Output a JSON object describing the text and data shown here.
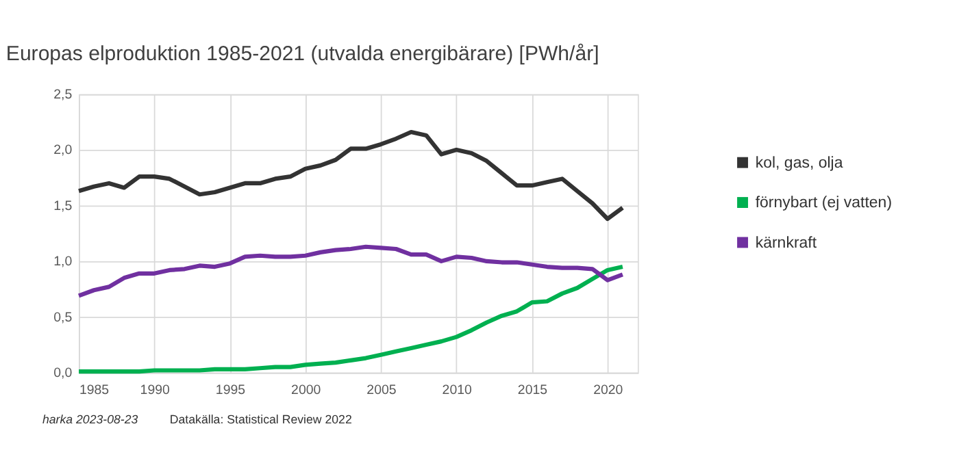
{
  "chart_data": {
    "type": "line",
    "title": "Europas elproduktion 1985-2021 (utvalda energibärare) [PWh/år]",
    "x": [
      1985,
      1986,
      1987,
      1988,
      1989,
      1990,
      1991,
      1992,
      1993,
      1994,
      1995,
      1996,
      1997,
      1998,
      1999,
      2000,
      2001,
      2002,
      2003,
      2004,
      2005,
      2006,
      2007,
      2008,
      2009,
      2010,
      2011,
      2012,
      2013,
      2014,
      2015,
      2016,
      2017,
      2018,
      2019,
      2020,
      2021
    ],
    "series": [
      {
        "name": "kol, gas, olja",
        "color": "#333333",
        "values": [
          1.63,
          1.67,
          1.7,
          1.66,
          1.76,
          1.76,
          1.74,
          1.67,
          1.6,
          1.62,
          1.66,
          1.7,
          1.7,
          1.74,
          1.76,
          1.83,
          1.86,
          1.91,
          2.01,
          2.01,
          2.05,
          2.1,
          2.16,
          2.13,
          1.96,
          2.0,
          1.97,
          1.9,
          1.79,
          1.68,
          1.68,
          1.71,
          1.74,
          1.63,
          1.52,
          1.38,
          1.48
        ]
      },
      {
        "name": "förnybart (ej vatten)",
        "color": "#00b050",
        "values": [
          0.01,
          0.01,
          0.01,
          0.01,
          0.01,
          0.02,
          0.02,
          0.02,
          0.02,
          0.03,
          0.03,
          0.03,
          0.04,
          0.05,
          0.05,
          0.07,
          0.08,
          0.09,
          0.11,
          0.13,
          0.16,
          0.19,
          0.22,
          0.25,
          0.28,
          0.32,
          0.38,
          0.45,
          0.51,
          0.55,
          0.63,
          0.64,
          0.71,
          0.76,
          0.84,
          0.92,
          0.95
        ]
      },
      {
        "name": "kärnkraft",
        "color": "#7030a0",
        "values": [
          0.69,
          0.74,
          0.77,
          0.85,
          0.89,
          0.89,
          0.92,
          0.93,
          0.96,
          0.95,
          0.98,
          1.04,
          1.05,
          1.04,
          1.04,
          1.05,
          1.08,
          1.1,
          1.11,
          1.13,
          1.12,
          1.11,
          1.06,
          1.06,
          1.0,
          1.04,
          1.03,
          1.0,
          0.99,
          0.99,
          0.97,
          0.95,
          0.94,
          0.94,
          0.93,
          0.83,
          0.88
        ]
      }
    ],
    "xlim": [
      1985,
      2022
    ],
    "xticks": [
      1985,
      1990,
      1995,
      2000,
      2005,
      2010,
      2015,
      2020
    ],
    "ylim": [
      0,
      2.5
    ],
    "yticks": [
      {
        "value": 0,
        "label": "0,0"
      },
      {
        "value": 0.5,
        "label": "0,5"
      },
      {
        "value": 1,
        "label": "1,0"
      },
      {
        "value": 1.5,
        "label": "1,5"
      },
      {
        "value": 2,
        "label": "2,0"
      },
      {
        "value": 2.5,
        "label": "2,5"
      }
    ],
    "grid": true,
    "legend": "right",
    "marker": "none",
    "line_style": "solid",
    "annotations": [
      "harka 2023-08-23",
      "Datakälla: Statistical Review 2022"
    ]
  }
}
